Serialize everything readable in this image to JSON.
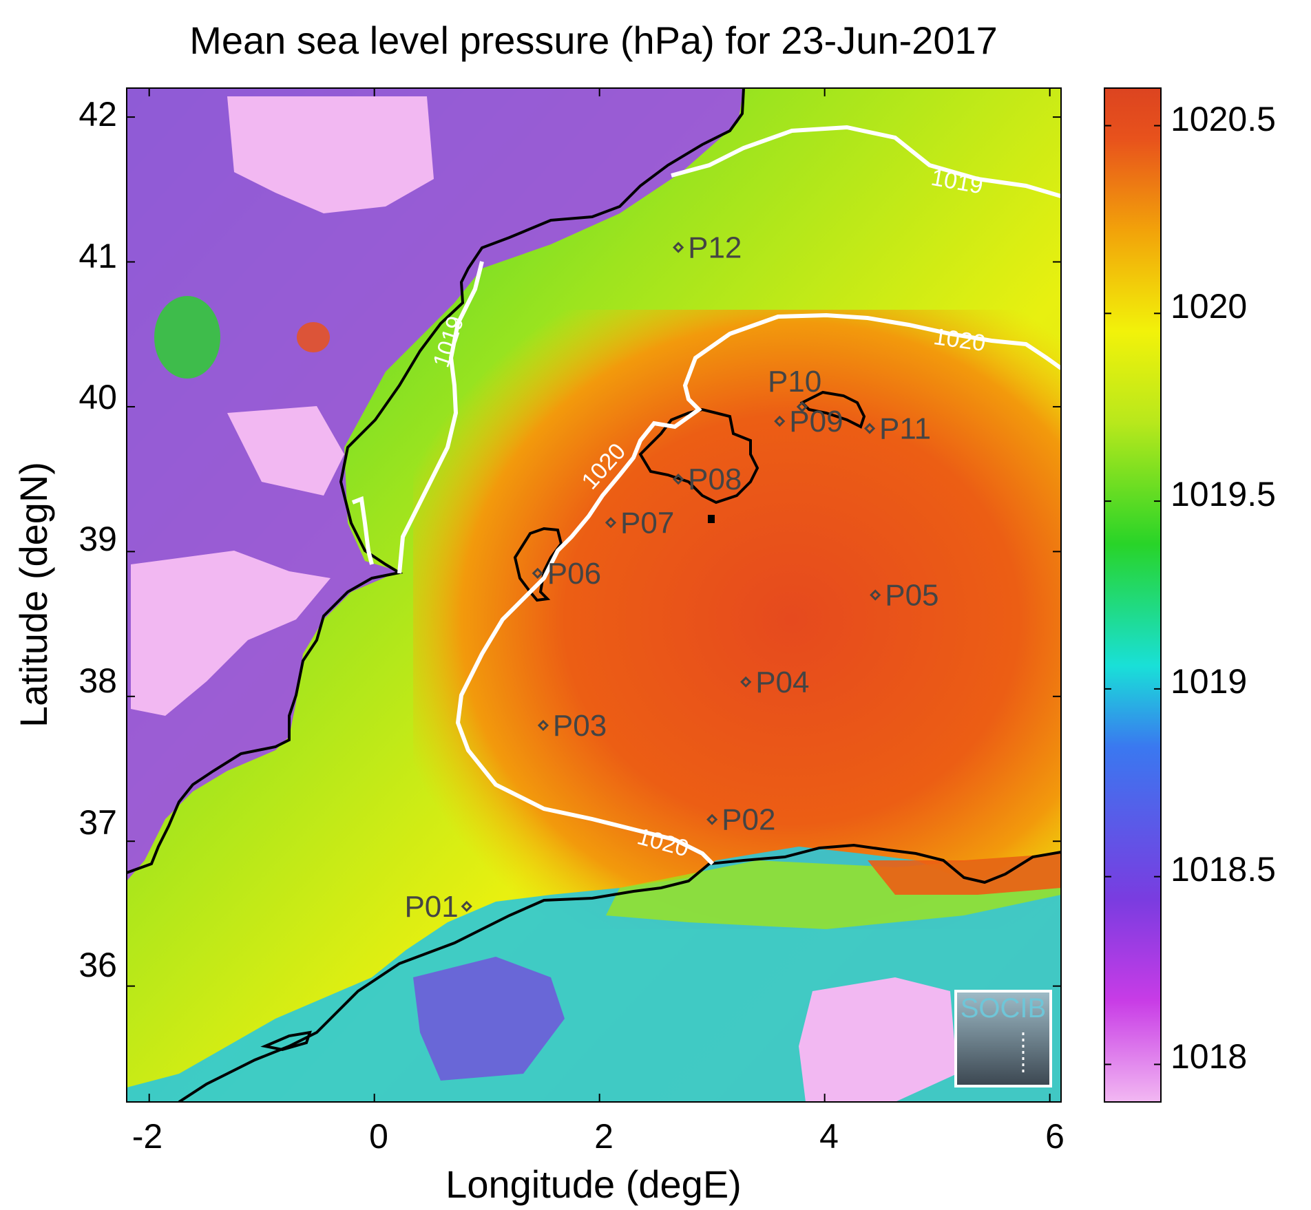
{
  "title": "Mean sea level pressure (hPa) for 23-Jun-2017",
  "xlabel": "Longitude (degE)",
  "ylabel": "Latitude (degN)",
  "logo_text": "SOCIB",
  "x_ticks": [
    "-2",
    "0",
    "2",
    "4",
    "6"
  ],
  "y_ticks": [
    "42",
    "41",
    "40",
    "39",
    "38",
    "37",
    "36"
  ],
  "colorbar_ticks": [
    "1020.5",
    "1020",
    "1019.5",
    "1019",
    "1018.5",
    "1018"
  ],
  "contour_labels": [
    "1019",
    "1019",
    "1020",
    "1020",
    "1020"
  ],
  "points": [
    {
      "label": "P01",
      "lon": 0.82,
      "lat": 36.55
    },
    {
      "label": "P02",
      "lon": 3.0,
      "lat": 37.15
    },
    {
      "label": "P03",
      "lon": 1.5,
      "lat": 37.8
    },
    {
      "label": "P04",
      "lon": 3.3,
      "lat": 38.1
    },
    {
      "label": "P05",
      "lon": 4.45,
      "lat": 38.7
    },
    {
      "label": "P06",
      "lon": 1.45,
      "lat": 38.85
    },
    {
      "label": "P07",
      "lon": 2.1,
      "lat": 39.2
    },
    {
      "label": "P08",
      "lon": 2.7,
      "lat": 39.5
    },
    {
      "label": "P09",
      "lon": 3.6,
      "lat": 39.9
    },
    {
      "label": "P10",
      "lon": 3.8,
      "lat": 40.0
    },
    {
      "label": "P11",
      "lon": 4.4,
      "lat": 39.85
    },
    {
      "label": "P12",
      "lon": 2.7,
      "lat": 41.1
    }
  ],
  "chart_data": {
    "type": "heatmap",
    "title": "Mean sea level pressure (hPa) for 23-Jun-2017",
    "xlabel": "Longitude (degE)",
    "ylabel": "Latitude (degN)",
    "xlim": [
      -2.2,
      6.1
    ],
    "ylim": [
      35.2,
      42.2
    ],
    "color_range": [
      1017.9,
      1020.6
    ],
    "units": "hPa",
    "contour_levels": [
      1019,
      1020
    ],
    "colormap": [
      "#f2b8f2",
      "#c83ce6",
      "#7a3ce0",
      "#3a78f0",
      "#19e0d8",
      "#28d428",
      "#b8e81c",
      "#f2f20a",
      "#f2a20a",
      "#e8521c",
      "#dc4420"
    ]
  }
}
